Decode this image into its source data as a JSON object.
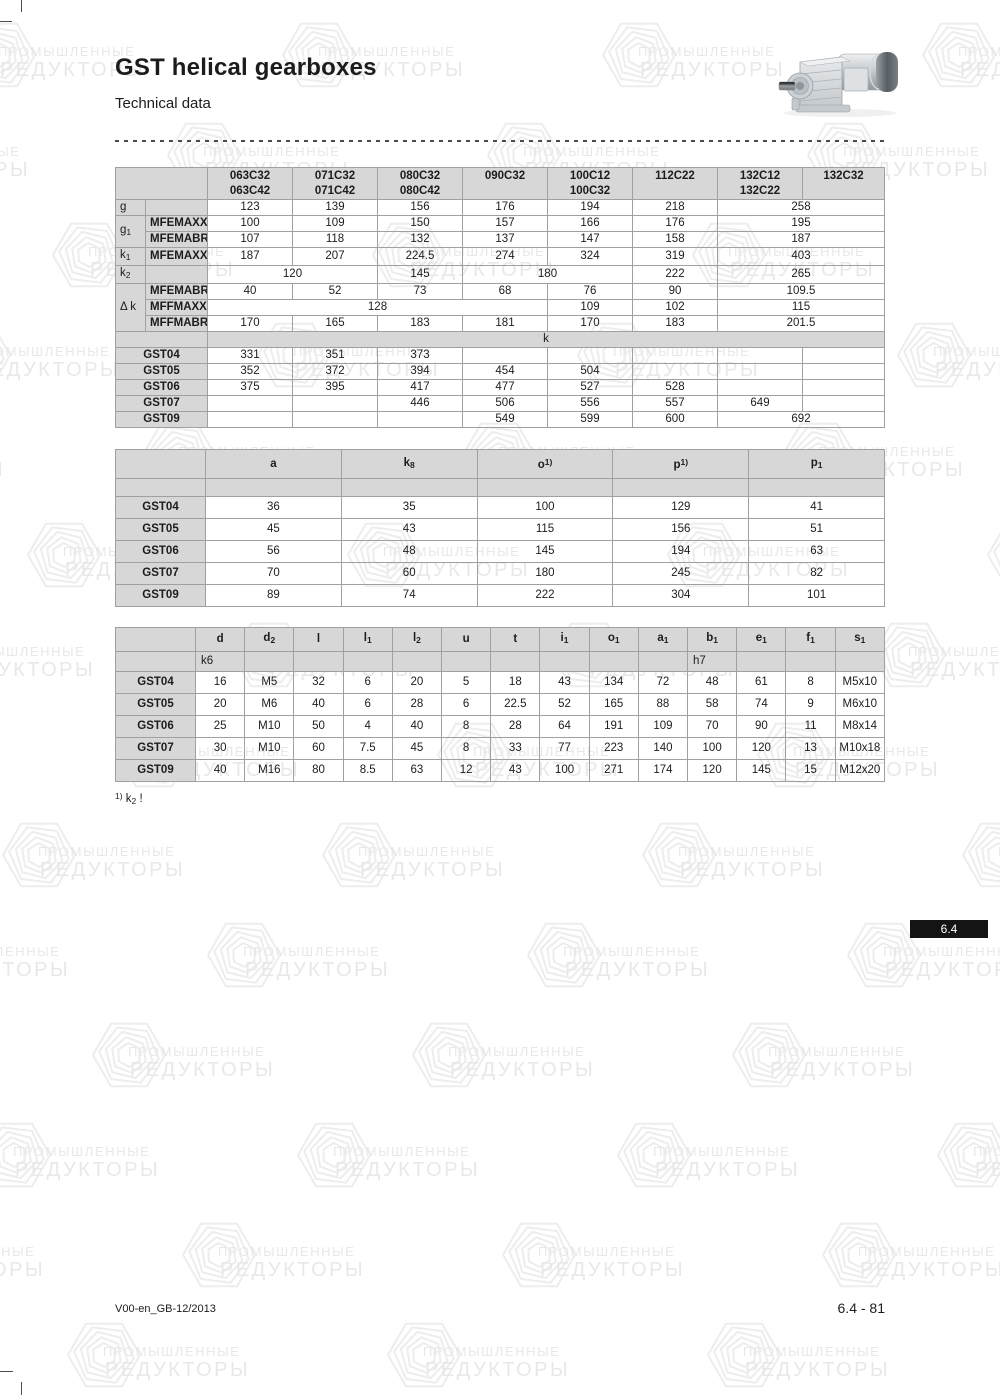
{
  "page": {
    "title": "GST helical gearboxes",
    "subtitle": "Technical data",
    "footer_left": "V00-en_GB-12/2013",
    "footer_right": "6.4 - 81",
    "section_badge": "6.4"
  },
  "watermark": {
    "line1": "ПРОМЫШЛЕННЫЕ",
    "line2": "РЕДУКТОРЫ"
  },
  "footnote": {
    "sup": "1)",
    "base": " k",
    "sub": "2",
    "tail": " !"
  },
  "colors": {
    "header_bg": "#d7d7d7",
    "border_inner": "#a0a0a0",
    "border_outer": "#5f5f5f",
    "badge_bg": "#141414",
    "wm_text": "#e8e8e8",
    "wm_stroke": "#ededed"
  },
  "table1": {
    "col_headers": [
      [
        "063C32",
        "063C42"
      ],
      [
        "071C32",
        "071C42"
      ],
      [
        "080C32",
        "080C42"
      ],
      [
        "090C32",
        ""
      ],
      [
        "100C12",
        "100C32"
      ],
      [
        "112C22",
        ""
      ],
      [
        "132C12",
        "132C22"
      ],
      [
        "132C32",
        ""
      ]
    ],
    "rows": [
      {
        "labels": [
          {
            "b": "g",
            "cls": "lab1",
            "rs": 1
          },
          {
            "b": "",
            "cls": "lab2",
            "rs": 1
          }
        ],
        "cells": [
          [
            "123",
            1
          ],
          [
            "139",
            1
          ],
          [
            "156",
            1
          ],
          [
            "176",
            1
          ],
          [
            "194",
            1
          ],
          [
            "218",
            1
          ],
          [
            "258",
            2
          ]
        ]
      },
      {
        "labels": [
          {
            "b": "g",
            "sub": "1",
            "cls": "lab1",
            "rs": 2
          },
          {
            "b": "MFEMAXX",
            "cls": "lab2",
            "rs": 1
          }
        ],
        "cells": [
          [
            "100",
            1
          ],
          [
            "109",
            1
          ],
          [
            "150",
            1
          ],
          [
            "157",
            1
          ],
          [
            "166",
            1
          ],
          [
            "176",
            1
          ],
          [
            "195",
            2
          ]
        ]
      },
      {
        "labels": [
          {
            "b": "MFEMABR",
            "cls": "lab2",
            "rs": 1
          }
        ],
        "cells": [
          [
            "107",
            1
          ],
          [
            "118",
            1
          ],
          [
            "132",
            1
          ],
          [
            "137",
            1
          ],
          [
            "147",
            1
          ],
          [
            "158",
            1
          ],
          [
            "187",
            2
          ]
        ]
      },
      {
        "labels": [
          {
            "b": "k",
            "sub": "1",
            "cls": "lab1",
            "rs": 1
          },
          {
            "b": "MFEMAXX",
            "cls": "lab2",
            "rs": 1
          }
        ],
        "cells": [
          [
            "187",
            1
          ],
          [
            "207",
            1
          ],
          [
            "224.5",
            1
          ],
          [
            "274",
            1
          ],
          [
            "324",
            1
          ],
          [
            "319",
            1
          ],
          [
            "403",
            2
          ]
        ]
      },
      {
        "labels": [
          {
            "b": "k",
            "sub": "2",
            "cls": "lab1",
            "rs": 1
          },
          {
            "b": "",
            "cls": "lab2",
            "rs": 1
          }
        ],
        "cells": [
          [
            "120",
            2
          ],
          [
            "145",
            1
          ],
          [
            "180",
            2
          ],
          [
            "222",
            1
          ],
          [
            "265",
            2
          ]
        ]
      },
      {
        "labels": [
          {
            "b": "Δ k",
            "cls": "lab1",
            "rs": 3
          },
          {
            "b": "MFEMABR",
            "cls": "lab2",
            "rs": 1
          }
        ],
        "cells": [
          [
            "40",
            1
          ],
          [
            "52",
            1
          ],
          [
            "73",
            1
          ],
          [
            "68",
            1
          ],
          [
            "76",
            1
          ],
          [
            "90",
            1
          ],
          [
            "109.5",
            2
          ]
        ]
      },
      {
        "labels": [
          {
            "b": "MFFMAXX",
            "cls": "lab2",
            "rs": 1
          }
        ],
        "cells": [
          [
            "128",
            4
          ],
          [
            "109",
            1
          ],
          [
            "102",
            1
          ],
          [
            "115",
            2
          ]
        ]
      },
      {
        "labels": [
          {
            "b": "MFFMABR",
            "cls": "lab2",
            "rs": 1
          }
        ],
        "cells": [
          [
            "170",
            1
          ],
          [
            "165",
            1
          ],
          [
            "183",
            1
          ],
          [
            "181",
            1
          ],
          [
            "170",
            1
          ],
          [
            "183",
            1
          ],
          [
            "201.5",
            2
          ]
        ]
      },
      {
        "labels": [
          {
            "b": "",
            "cls": "kband",
            "cs": 2,
            "rs": 1
          }
        ],
        "cells": [
          [
            "k",
            8,
            "kband"
          ]
        ]
      },
      {
        "labels": [
          {
            "b": "GST04",
            "cls": "gstlab",
            "cs": 2,
            "rs": 1
          }
        ],
        "cells": [
          [
            "331",
            1
          ],
          [
            "351",
            1
          ],
          [
            "373",
            1
          ],
          [
            "",
            1
          ],
          [
            "",
            1
          ],
          [
            "",
            1
          ],
          [
            "",
            1
          ],
          [
            "",
            1
          ]
        ]
      },
      {
        "labels": [
          {
            "b": "GST05",
            "cls": "gstlab",
            "cs": 2,
            "rs": 1
          }
        ],
        "cells": [
          [
            "352",
            1
          ],
          [
            "372",
            1
          ],
          [
            "394",
            1
          ],
          [
            "454",
            1
          ],
          [
            "504",
            1
          ],
          [
            "",
            1
          ],
          [
            "",
            1
          ],
          [
            "",
            1
          ]
        ]
      },
      {
        "labels": [
          {
            "b": "GST06",
            "cls": "gstlab",
            "cs": 2,
            "rs": 1
          }
        ],
        "cells": [
          [
            "375",
            1
          ],
          [
            "395",
            1
          ],
          [
            "417",
            1
          ],
          [
            "477",
            1
          ],
          [
            "527",
            1
          ],
          [
            "528",
            1
          ],
          [
            "",
            1
          ],
          [
            "",
            1
          ]
        ]
      },
      {
        "labels": [
          {
            "b": "GST07",
            "cls": "gstlab",
            "cs": 2,
            "rs": 1
          }
        ],
        "cells": [
          [
            "",
            1
          ],
          [
            "",
            1
          ],
          [
            "446",
            1
          ],
          [
            "506",
            1
          ],
          [
            "556",
            1
          ],
          [
            "557",
            1
          ],
          [
            "649",
            1
          ],
          [
            "",
            1
          ]
        ]
      },
      {
        "labels": [
          {
            "b": "GST09",
            "cls": "gstlab",
            "cs": 2,
            "rs": 1
          }
        ],
        "cells": [
          [
            "",
            1
          ],
          [
            "",
            1
          ],
          [
            "",
            1
          ],
          [
            "549",
            1
          ],
          [
            "599",
            1
          ],
          [
            "600",
            1
          ],
          [
            "692",
            2
          ]
        ]
      }
    ]
  },
  "table2": {
    "cols": [
      {
        "b": "a"
      },
      {
        "b": "k",
        "sub": "8"
      },
      {
        "b": "o",
        "sup": "1)"
      },
      {
        "b": "p",
        "sup": "1)"
      },
      {
        "b": "p",
        "sub": "1"
      }
    ],
    "notes": [
      "",
      "",
      "",
      "",
      ""
    ],
    "rows": [
      {
        "label": "GST04",
        "values": [
          "36",
          "35",
          "100",
          "129",
          "41"
        ]
      },
      {
        "label": "GST05",
        "values": [
          "45",
          "43",
          "115",
          "156",
          "51"
        ]
      },
      {
        "label": "GST06",
        "values": [
          "56",
          "48",
          "145",
          "194",
          "63"
        ]
      },
      {
        "label": "GST07",
        "values": [
          "70",
          "60",
          "180",
          "245",
          "82"
        ]
      },
      {
        "label": "GST09",
        "values": [
          "89",
          "74",
          "222",
          "304",
          "101"
        ]
      }
    ]
  },
  "table3": {
    "cols": [
      {
        "b": "d"
      },
      {
        "b": "d",
        "sub": "2"
      },
      {
        "b": "l"
      },
      {
        "b": "l",
        "sub": "1"
      },
      {
        "b": "l",
        "sub": "2"
      },
      {
        "b": "u"
      },
      {
        "b": "t"
      },
      {
        "b": "i",
        "sub": "1"
      },
      {
        "b": "o",
        "sub": "1"
      },
      {
        "b": "a",
        "sub": "1"
      },
      {
        "b": "b",
        "sub": "1"
      },
      {
        "b": "e",
        "sub": "1"
      },
      {
        "b": "f",
        "sub": "1"
      },
      {
        "b": "s",
        "sub": "1"
      }
    ],
    "notes": [
      "k6",
      "",
      "",
      "",
      "",
      "",
      "",
      "",
      "",
      "",
      "h7",
      "",
      "",
      ""
    ],
    "rows": [
      {
        "label": "GST04",
        "values": [
          "16",
          "M5",
          "32",
          "6",
          "20",
          "5",
          "18",
          "43",
          "134",
          "72",
          "48",
          "61",
          "8",
          "M5x10"
        ]
      },
      {
        "label": "GST05",
        "values": [
          "20",
          "M6",
          "40",
          "6",
          "28",
          "6",
          "22.5",
          "52",
          "165",
          "88",
          "58",
          "74",
          "9",
          "M6x10"
        ]
      },
      {
        "label": "GST06",
        "values": [
          "25",
          "M10",
          "50",
          "4",
          "40",
          "8",
          "28",
          "64",
          "191",
          "109",
          "70",
          "90",
          "11",
          "M8x14"
        ]
      },
      {
        "label": "GST07",
        "values": [
          "30",
          "M10",
          "60",
          "7.5",
          "45",
          "8",
          "33",
          "77",
          "223",
          "140",
          "100",
          "120",
          "13",
          "M10x18"
        ]
      },
      {
        "label": "GST09",
        "values": [
          "40",
          "M16",
          "80",
          "8.5",
          "63",
          "12",
          "43",
          "100",
          "271",
          "174",
          "120",
          "145",
          "15",
          "M12x20"
        ]
      }
    ]
  }
}
